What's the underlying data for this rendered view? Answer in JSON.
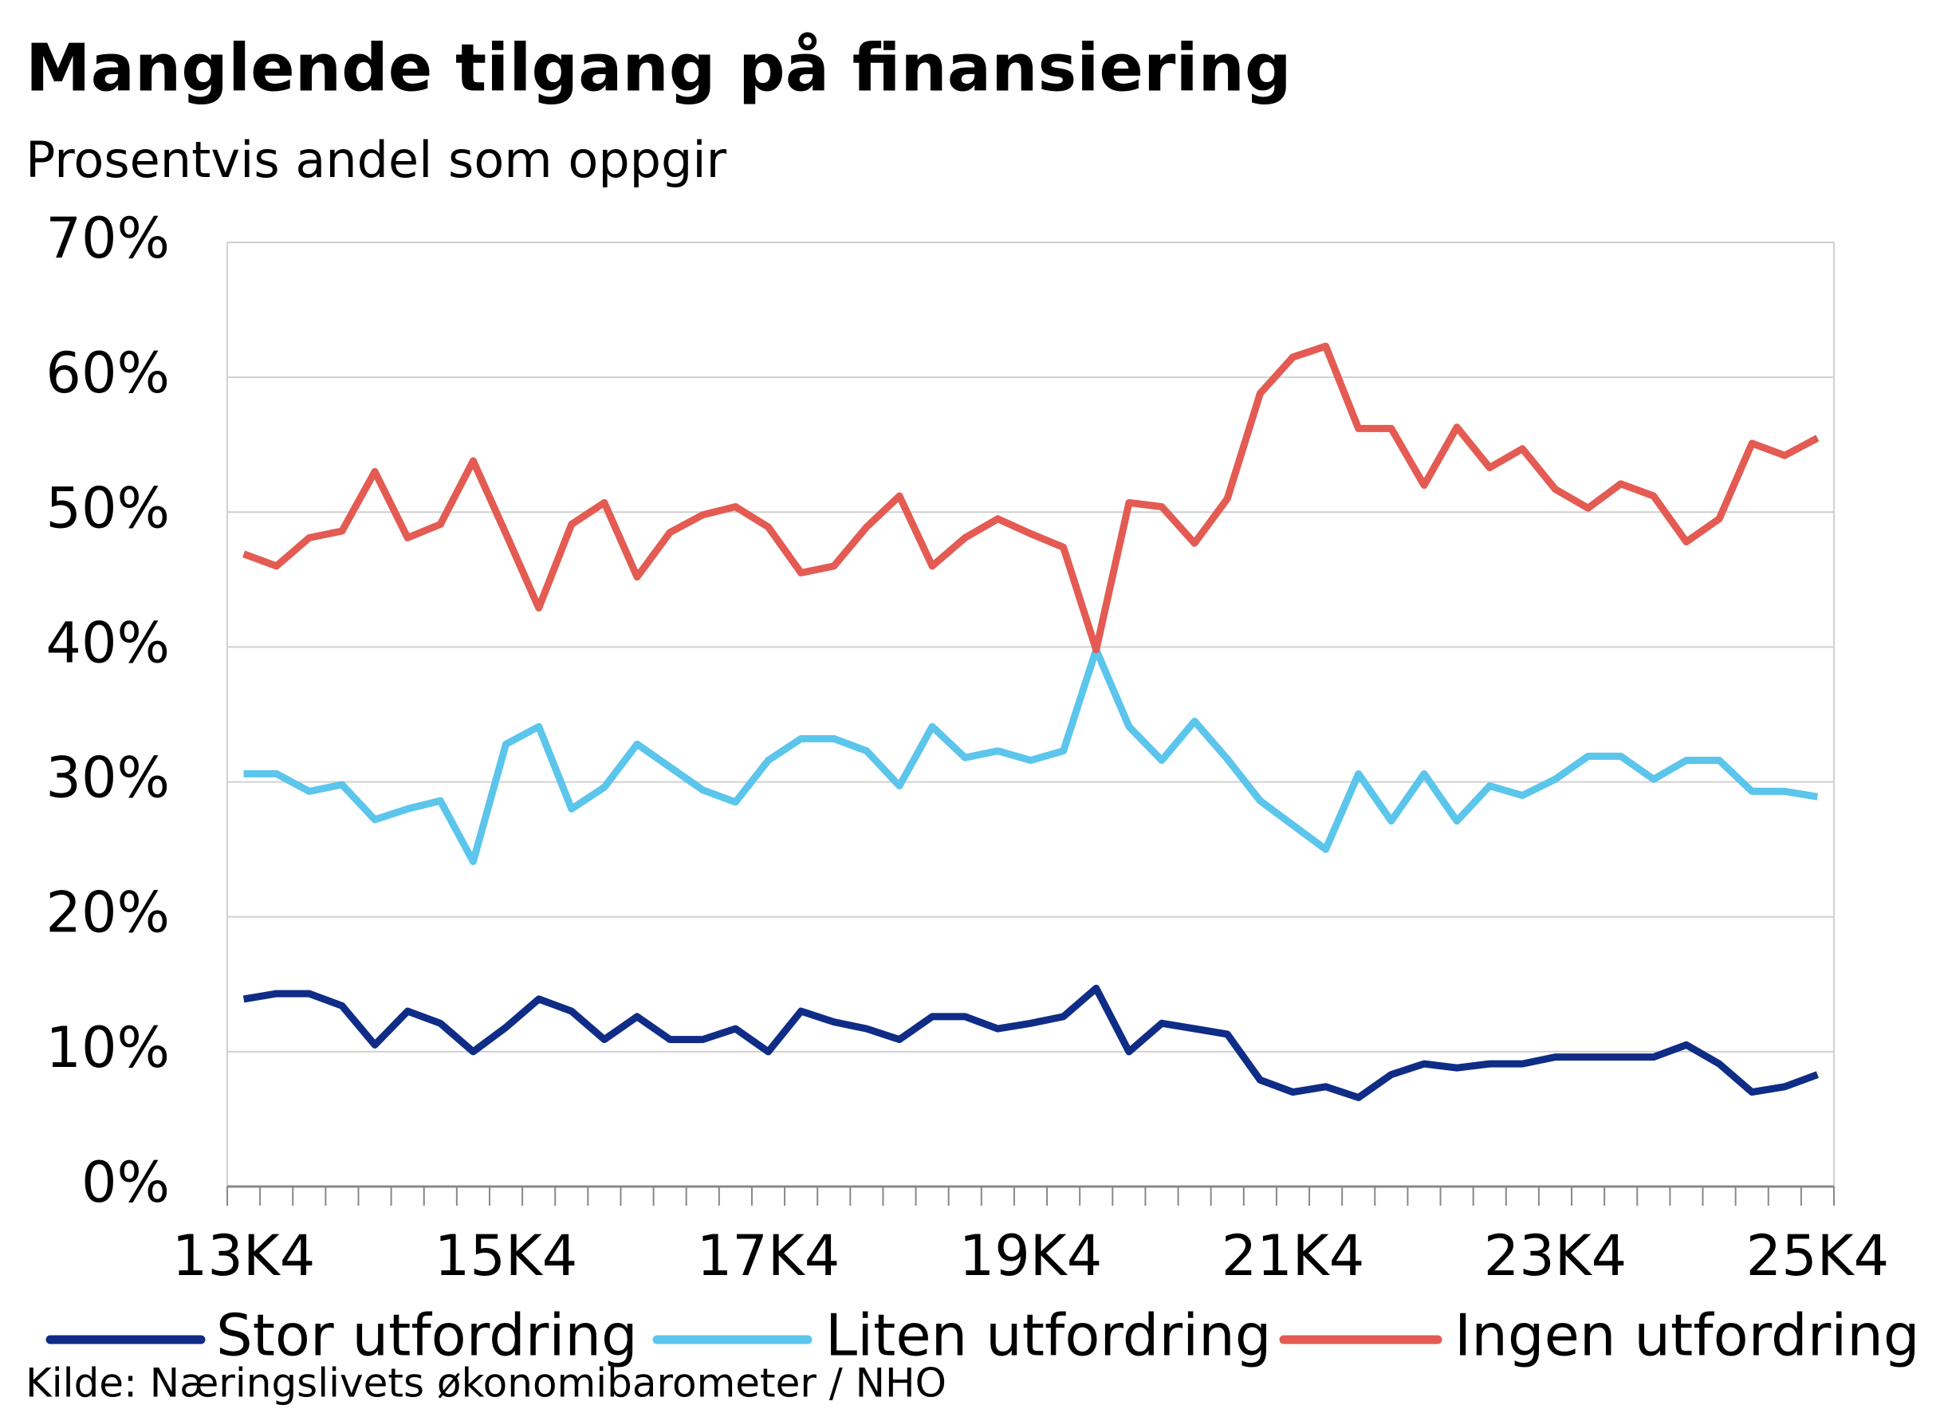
{
  "chart_data": {
    "type": "line",
    "title": "Manglende tilgang på finansiering",
    "subtitle": "Prosentvis andel som oppgir",
    "source": "Kilde: Næringslivets økonomibarometer / NHO",
    "categories": [
      "13K4",
      null,
      null,
      null,
      null,
      null,
      null,
      null,
      "15K4",
      null,
      null,
      null,
      null,
      null,
      null,
      null,
      "17K4",
      null,
      null,
      null,
      null,
      null,
      null,
      null,
      "19K4",
      null,
      null,
      null,
      null,
      null,
      null,
      null,
      "21K4",
      null,
      null,
      null,
      null,
      null,
      null,
      null,
      "23K4",
      null,
      null,
      null,
      null,
      null,
      null,
      null,
      "25K4"
    ],
    "series": [
      {
        "name": "Stor utfordring",
        "color": "#0f2c86",
        "values": [
          13.9,
          14.3,
          14.3,
          13.4,
          10.5,
          13.0,
          12.1,
          10.0,
          11.8,
          13.9,
          13.0,
          10.9,
          12.6,
          10.9,
          10.9,
          11.7,
          10.0,
          13.0,
          12.2,
          11.7,
          10.9,
          12.6,
          12.6,
          11.7,
          12.1,
          12.6,
          14.7,
          10.0,
          12.1,
          11.7,
          11.3,
          7.9,
          7.0,
          7.4,
          6.6,
          8.3,
          9.1,
          8.8,
          9.1,
          9.1,
          9.6,
          9.6,
          9.6,
          9.6,
          10.5,
          9.1,
          7.0,
          7.4,
          8.3
        ]
      },
      {
        "name": "Liten utfordring",
        "color": "#5bc5ec",
        "values": [
          30.6,
          30.6,
          29.3,
          29.8,
          27.2,
          28.0,
          28.6,
          24.1,
          32.8,
          34.1,
          28.0,
          29.6,
          32.8,
          31.1,
          29.4,
          28.5,
          31.6,
          33.2,
          33.2,
          32.3,
          29.7,
          34.1,
          31.8,
          32.3,
          31.6,
          32.3,
          39.8,
          34.1,
          31.6,
          34.5,
          31.7,
          28.6,
          26.8,
          25.0,
          30.6,
          27.1,
          30.6,
          27.1,
          29.7,
          29.0,
          30.2,
          31.9,
          31.9,
          30.2,
          31.6,
          31.6,
          29.3,
          29.3,
          28.9
        ]
      },
      {
        "name": "Ingen utfordring",
        "color": "#e35b52",
        "values": [
          46.9,
          46.0,
          48.1,
          48.6,
          53.0,
          48.1,
          49.1,
          53.8,
          48.4,
          42.9,
          49.1,
          50.7,
          45.2,
          48.5,
          49.8,
          50.4,
          48.9,
          45.5,
          46.0,
          48.9,
          51.2,
          46.0,
          48.1,
          49.5,
          48.4,
          47.4,
          39.8,
          50.7,
          50.4,
          47.7,
          51.0,
          58.8,
          61.5,
          62.3,
          56.2,
          56.2,
          52.0,
          56.3,
          53.3,
          54.7,
          51.7,
          50.3,
          52.1,
          51.2,
          47.8,
          49.5,
          55.1,
          54.2,
          55.5
        ]
      }
    ],
    "ylim": [
      0,
      70
    ],
    "yticks": [
      {
        "value": 0,
        "label": "0%"
      },
      {
        "value": 10,
        "label": "10%"
      },
      {
        "value": 20,
        "label": "20%"
      },
      {
        "value": 30,
        "label": "30%"
      },
      {
        "value": 40,
        "label": "40%"
      },
      {
        "value": 50,
        "label": "50%"
      },
      {
        "value": 60,
        "label": "60%"
      },
      {
        "value": 70,
        "label": "70%"
      }
    ],
    "grid": true,
    "legend": "bottom"
  }
}
